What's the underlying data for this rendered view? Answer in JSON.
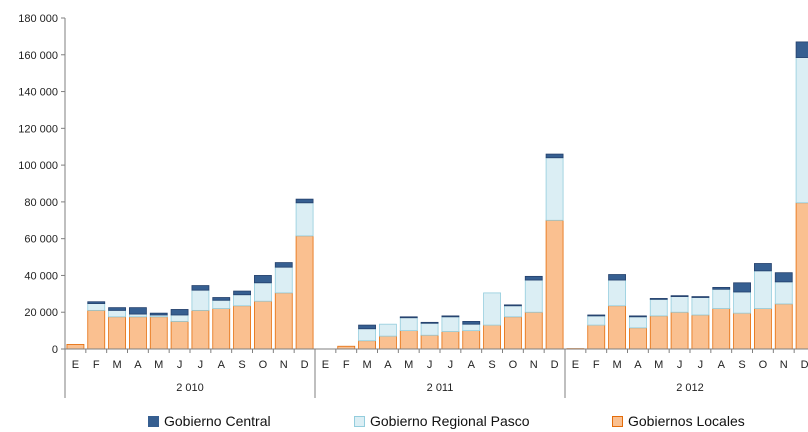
{
  "chart_data": {
    "type": "bar",
    "stacked": true,
    "title": "",
    "xlabel": "",
    "ylabel": "",
    "ylim": [
      0,
      180000
    ],
    "yticks": [
      0,
      20000,
      40000,
      60000,
      80000,
      100000,
      120000,
      140000,
      160000,
      180000
    ],
    "ytick_labels": [
      "0",
      "20 000",
      "40 000",
      "60 000",
      "80 000",
      "100 000",
      "120 000",
      "140 000",
      "160 000",
      "180 000"
    ],
    "grid": false,
    "legend_position": "bottom",
    "groups": [
      {
        "label": "2 010",
        "months": [
          "E",
          "F",
          "M",
          "A",
          "M",
          "J",
          "J",
          "A",
          "S",
          "O",
          "N",
          "D"
        ]
      },
      {
        "label": "2 011",
        "months": [
          "E",
          "F",
          "M",
          "A",
          "M",
          "J",
          "J",
          "A",
          "S",
          "O",
          "N",
          "D"
        ]
      },
      {
        "label": "2 012",
        "months": [
          "E",
          "F",
          "M",
          "A",
          "M",
          "J",
          "J",
          "A",
          "S",
          "O",
          "N",
          "D"
        ]
      }
    ],
    "series": [
      {
        "name": "Gobiernos Locales",
        "color": "#fac090",
        "stroke": "#e46c0a",
        "values": [
          2500,
          21000,
          17500,
          17500,
          17500,
          15000,
          21000,
          22000,
          23500,
          26000,
          30500,
          61500,
          0,
          1500,
          4500,
          7000,
          10000,
          7500,
          9500,
          10000,
          13000,
          17500,
          20000,
          70000,
          200,
          13000,
          23500,
          11500,
          18000,
          20000,
          18500,
          22000,
          19500,
          22000,
          24500,
          79500
        ]
      },
      {
        "name": "Gobierno Regional Pasco",
        "color": "#dbeef4",
        "stroke": "#93cddd",
        "values": [
          0,
          3700,
          3500,
          1500,
          1000,
          3500,
          11000,
          4500,
          6000,
          10000,
          14000,
          18000,
          0,
          0,
          6500,
          6500,
          7000,
          6500,
          8000,
          3500,
          17500,
          6000,
          17500,
          34000,
          0,
          5000,
          14000,
          6000,
          9000,
          8500,
          9500,
          10500,
          11500,
          20500,
          12000,
          79000
        ]
      },
      {
        "name": "Gobierno Central",
        "color": "#365f91",
        "stroke": "#24406c",
        "values": [
          0,
          1000,
          1500,
          3500,
          1000,
          3000,
          2500,
          1500,
          2000,
          4000,
          2500,
          2000,
          0,
          0,
          2000,
          0,
          500,
          500,
          500,
          1500,
          0,
          500,
          2000,
          2000,
          0,
          500,
          3000,
          500,
          500,
          500,
          500,
          1000,
          5000,
          4000,
          5000,
          8500
        ]
      }
    ]
  }
}
